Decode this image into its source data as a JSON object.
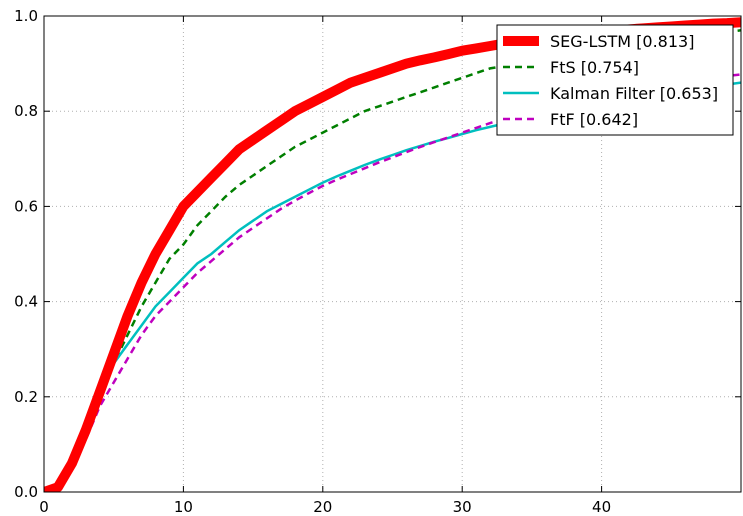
{
  "chart_data": {
    "type": "line",
    "title": "",
    "xlabel": "",
    "ylabel": "",
    "xlim": [
      0,
      50
    ],
    "ylim": [
      0,
      1.0
    ],
    "x_ticks": [
      0,
      10,
      20,
      30,
      40
    ],
    "x_tick_labels": [
      "0",
      "10",
      "20",
      "30",
      "40"
    ],
    "y_ticks": [
      0.0,
      0.2,
      0.4,
      0.6,
      0.8,
      1.0
    ],
    "y_tick_labels": [
      "0.0",
      "0.2",
      "0.4",
      "0.6",
      "0.8",
      "1.0"
    ],
    "grid": true,
    "legend_position": "top-right",
    "series": [
      {
        "name": "SEG-LSTM [0.813]",
        "color": "#ff0000",
        "style": "solid-thick",
        "x": [
          0,
          1,
          2,
          3,
          4,
          5,
          6,
          7,
          8,
          9,
          10,
          11,
          12,
          13,
          14,
          15,
          16,
          17,
          18,
          19,
          20,
          21,
          22,
          23,
          24,
          25,
          26,
          27,
          28,
          29,
          30,
          31,
          32,
          33,
          34,
          35,
          36,
          37,
          38,
          39,
          40,
          41,
          42,
          43,
          44,
          45,
          46,
          47,
          48,
          49,
          50
        ],
        "y": [
          0.0,
          0.01,
          0.06,
          0.13,
          0.21,
          0.29,
          0.37,
          0.44,
          0.5,
          0.55,
          0.6,
          0.63,
          0.66,
          0.69,
          0.72,
          0.74,
          0.76,
          0.78,
          0.8,
          0.815,
          0.83,
          0.845,
          0.86,
          0.87,
          0.88,
          0.89,
          0.9,
          0.907,
          0.913,
          0.92,
          0.927,
          0.932,
          0.937,
          0.942,
          0.946,
          0.95,
          0.954,
          0.958,
          0.961,
          0.964,
          0.967,
          0.97,
          0.972,
          0.974,
          0.976,
          0.978,
          0.98,
          0.982,
          0.984,
          0.985,
          0.987
        ]
      },
      {
        "name": "FtS [0.754]",
        "color": "#007f00",
        "style": "dashed",
        "x": [
          0,
          1,
          2,
          3,
          4,
          5,
          6,
          7,
          8,
          9,
          10,
          11,
          12,
          13,
          14,
          15,
          16,
          17,
          18,
          19,
          20,
          21,
          22,
          23,
          24,
          25,
          26,
          27,
          28,
          29,
          30,
          31,
          32,
          33,
          34,
          35,
          36,
          37,
          38,
          39,
          40,
          41,
          42,
          43,
          44,
          45,
          46,
          47,
          48,
          49,
          50
        ],
        "y": [
          0.0,
          0.01,
          0.06,
          0.13,
          0.2,
          0.27,
          0.33,
          0.39,
          0.44,
          0.49,
          0.52,
          0.56,
          0.59,
          0.62,
          0.645,
          0.665,
          0.685,
          0.705,
          0.725,
          0.74,
          0.755,
          0.77,
          0.785,
          0.8,
          0.81,
          0.82,
          0.83,
          0.84,
          0.85,
          0.86,
          0.87,
          0.88,
          0.89,
          0.895,
          0.9,
          0.905,
          0.91,
          0.915,
          0.92,
          0.925,
          0.93,
          0.935,
          0.94,
          0.945,
          0.95,
          0.953,
          0.956,
          0.96,
          0.963,
          0.966,
          0.97
        ]
      },
      {
        "name": "Kalman Filter [0.653]",
        "color": "#00bfbf",
        "style": "solid",
        "x": [
          0,
          1,
          2,
          3,
          4,
          5,
          6,
          7,
          8,
          9,
          10,
          11,
          12,
          13,
          14,
          15,
          16,
          17,
          18,
          19,
          20,
          21,
          22,
          23,
          24,
          25,
          26,
          27,
          28,
          29,
          30,
          31,
          32,
          33,
          34,
          35,
          36,
          37,
          38,
          39,
          40,
          41,
          42,
          43,
          44,
          45,
          46,
          47,
          48,
          49,
          50
        ],
        "y": [
          0.0,
          0.02,
          0.07,
          0.14,
          0.21,
          0.27,
          0.31,
          0.35,
          0.39,
          0.42,
          0.45,
          0.48,
          0.5,
          0.525,
          0.55,
          0.57,
          0.59,
          0.605,
          0.62,
          0.635,
          0.65,
          0.663,
          0.675,
          0.687,
          0.698,
          0.708,
          0.718,
          0.727,
          0.736,
          0.744,
          0.752,
          0.76,
          0.767,
          0.774,
          0.781,
          0.787,
          0.793,
          0.799,
          0.805,
          0.81,
          0.815,
          0.82,
          0.825,
          0.83,
          0.835,
          0.84,
          0.844,
          0.848,
          0.852,
          0.856,
          0.86
        ]
      },
      {
        "name": "FtF [0.642]",
        "color": "#bf00bf",
        "style": "dashed",
        "x": [
          0,
          1,
          2,
          3,
          4,
          5,
          6,
          7,
          8,
          9,
          10,
          11,
          12,
          13,
          14,
          15,
          16,
          17,
          18,
          19,
          20,
          21,
          22,
          23,
          24,
          25,
          26,
          27,
          28,
          29,
          30,
          31,
          32,
          33,
          34,
          35,
          36,
          37,
          38,
          39,
          40,
          41,
          42,
          43,
          44,
          45,
          46,
          47,
          48,
          49,
          50
        ],
        "y": [
          0.0,
          0.01,
          0.05,
          0.11,
          0.18,
          0.23,
          0.28,
          0.33,
          0.37,
          0.4,
          0.43,
          0.46,
          0.485,
          0.51,
          0.535,
          0.555,
          0.575,
          0.595,
          0.612,
          0.628,
          0.643,
          0.656,
          0.668,
          0.68,
          0.692,
          0.703,
          0.714,
          0.725,
          0.735,
          0.745,
          0.755,
          0.765,
          0.775,
          0.784,
          0.793,
          0.801,
          0.808,
          0.815,
          0.822,
          0.828,
          0.834,
          0.84,
          0.845,
          0.85,
          0.855,
          0.86,
          0.864,
          0.868,
          0.871,
          0.874,
          0.877
        ]
      }
    ]
  }
}
